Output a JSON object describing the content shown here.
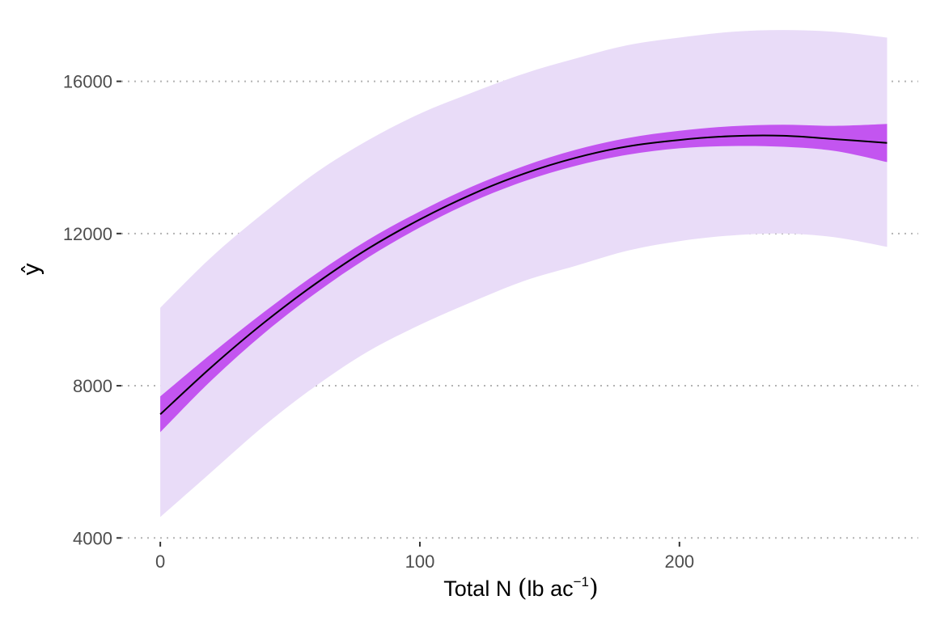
{
  "chart_data": {
    "type": "line",
    "xlabel": {
      "main": "Total N ",
      "unit": "lb ac",
      "exponent": "−1"
    },
    "ylabel": "ŷ",
    "xlim": [
      -15,
      292
    ],
    "ylim": [
      3900,
      17500
    ],
    "x_ticks": [
      {
        "value": 0,
        "label": "0"
      },
      {
        "value": 100,
        "label": "100"
      },
      {
        "value": 200,
        "label": "200"
      }
    ],
    "y_ticks": [
      {
        "value": 4000,
        "label": "4000"
      },
      {
        "value": 8000,
        "label": "8000"
      },
      {
        "value": 12000,
        "label": "12000"
      },
      {
        "value": 16000,
        "label": "16000"
      }
    ],
    "grid": {
      "horizontal": true,
      "vertical": false,
      "style": "dotted"
    },
    "series": [
      {
        "role": "fit",
        "color": "#000000",
        "x": [
          0,
          20,
          40,
          60,
          80,
          100,
          120,
          140,
          160,
          180,
          200,
          220,
          240,
          260,
          280
        ],
        "y": [
          7250,
          8510,
          9660,
          10690,
          11600,
          12370,
          13030,
          13570,
          13990,
          14290,
          14460,
          14560,
          14570,
          14480,
          14380
        ]
      },
      {
        "role": "confidence-band",
        "color": "#c355f0",
        "x": [
          0,
          20,
          40,
          60,
          80,
          100,
          120,
          140,
          160,
          180,
          200,
          220,
          240,
          260,
          280
        ],
        "lower": [
          6780,
          8160,
          9380,
          10440,
          11370,
          12160,
          12830,
          13370,
          13780,
          14070,
          14240,
          14300,
          14280,
          14170,
          13880
        ],
        "upper": [
          7720,
          8860,
          9940,
          10940,
          11830,
          12580,
          13230,
          13770,
          14200,
          14510,
          14700,
          14820,
          14860,
          14830,
          14880
        ]
      },
      {
        "role": "prediction-band",
        "color": "#e9dcf8",
        "x": [
          0,
          20,
          40,
          60,
          80,
          100,
          120,
          140,
          160,
          180,
          200,
          220,
          240,
          260,
          280
        ],
        "lower": [
          4550,
          5750,
          6950,
          8000,
          8900,
          9600,
          10200,
          10750,
          11150,
          11550,
          11800,
          11950,
          12000,
          11900,
          11650
        ],
        "upper": [
          10050,
          11400,
          12550,
          13600,
          14450,
          15150,
          15700,
          16200,
          16600,
          16950,
          17150,
          17300,
          17350,
          17300,
          17150
        ]
      }
    ]
  }
}
